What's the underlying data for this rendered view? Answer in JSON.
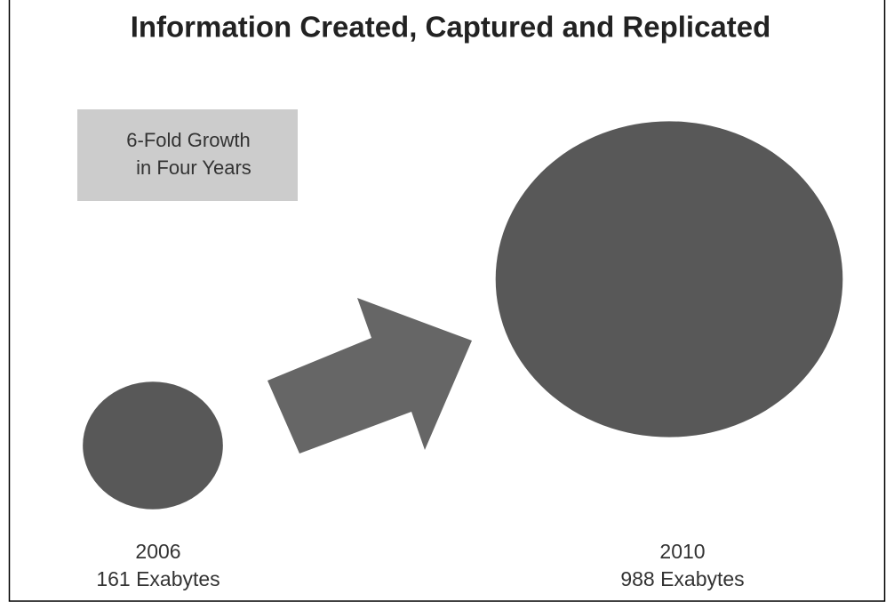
{
  "chart_data": {
    "type": "bubble",
    "title": "Information Created, Captured and Replicated",
    "annotation": [
      "6-Fold Growth",
      "in Four Years"
    ],
    "categories": [
      "2006",
      "2010"
    ],
    "values": [
      161,
      988
    ],
    "value_labels": [
      "161 Exabytes",
      "988 Exabytes"
    ],
    "color": "#585858"
  }
}
